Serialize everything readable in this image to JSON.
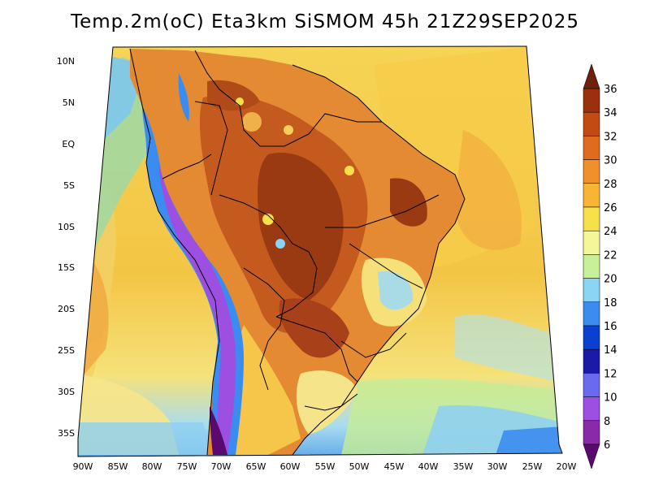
{
  "title": "Temp.2m(oC) Eta3km SiSMOM 45h 21Z29SEP2025",
  "lat_labels": [
    "10N",
    "5N",
    "EQ",
    "5S",
    "10S",
    "15S",
    "20S",
    "25S",
    "30S",
    "35S"
  ],
  "lon_labels": [
    "90W",
    "85W",
    "80W",
    "75W",
    "70W",
    "65W",
    "60W",
    "55W",
    "50W",
    "45W",
    "40W",
    "35W",
    "30W",
    "25W",
    "20W"
  ],
  "colorbar": {
    "levels": [
      "6",
      "8",
      "10",
      "12",
      "14",
      "16",
      "18",
      "20",
      "22",
      "24",
      "26",
      "28",
      "30",
      "32",
      "34",
      "36"
    ],
    "colors": [
      "#5a0a6e",
      "#8a2aa8",
      "#9c4fe0",
      "#6a6af0",
      "#1a1aa8",
      "#0a3fd0",
      "#3b8cf0",
      "#8ad4f6",
      "#c8f09a",
      "#f5f59a",
      "#f8e04a",
      "#f7b533",
      "#f0902a",
      "#e06a1e",
      "#c44a14",
      "#9a3010",
      "#6e2008"
    ]
  }
}
